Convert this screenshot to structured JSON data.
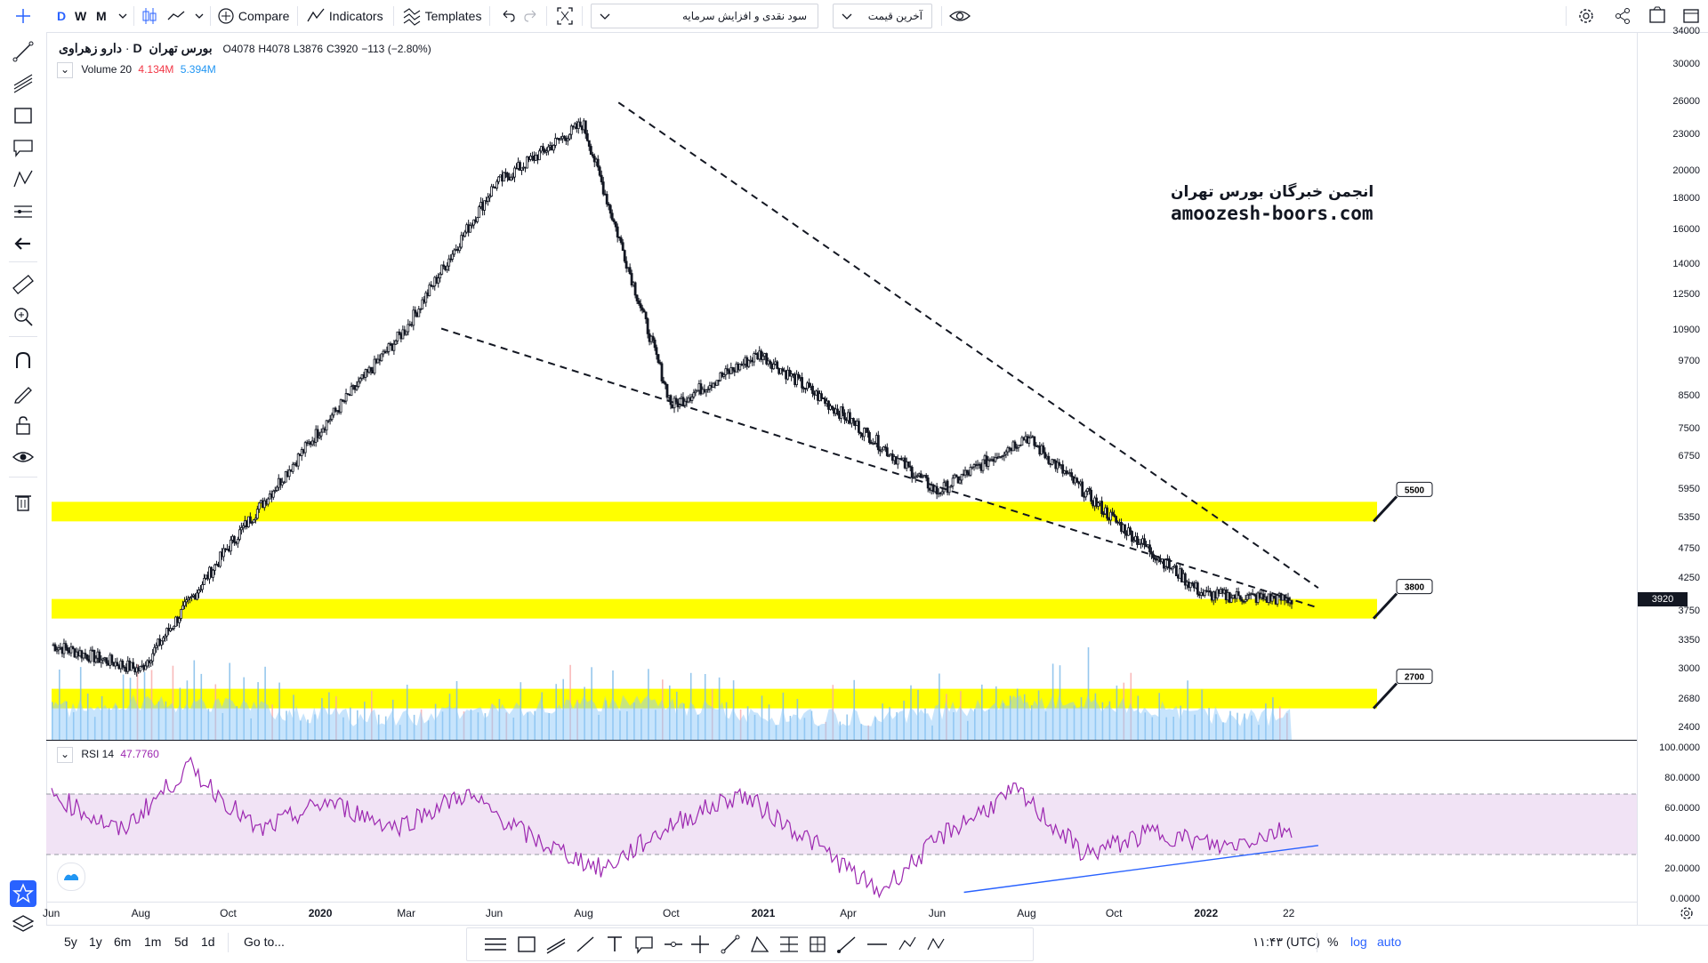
{
  "toolbar": {
    "intervals": [
      "D",
      "W",
      "M"
    ],
    "compare_label": "Compare",
    "indicators_label": "Indicators",
    "templates_label": "Templates",
    "dropdown1_value": "سود نقدی و افزایش سرمایه",
    "dropdown2_value": "آخرین قیمت"
  },
  "legend": {
    "symbol": "دارو زهراوی",
    "separator": "·",
    "interval": "D",
    "exchange": "بورس تهران",
    "ohlc": {
      "o": "O4078",
      "h": "H4078",
      "l": "L3876",
      "c": "C3920",
      "change": "−113 (−2.80%)"
    },
    "volume_label": "Volume 20",
    "volume_value1": "4.134M",
    "volume_value2": "5.394M",
    "rsi_label": "RSI 14",
    "rsi_value": "47.7760"
  },
  "watermark": {
    "line1": "انجمن خبرگان بورس تهران",
    "line2": "amoozesh-boors.com"
  },
  "annotations": [
    {
      "label": "5500",
      "price": 5500
    },
    {
      "label": "3800",
      "price": 3800
    },
    {
      "label": "2700",
      "price": 2700
    }
  ],
  "price_axis": {
    "ticks": [
      "34000",
      "30000",
      "26000",
      "23000",
      "20000",
      "18000",
      "16000",
      "14000",
      "12500",
      "10900",
      "9700",
      "8500",
      "7500",
      "6750",
      "5950",
      "5350",
      "4750",
      "4250",
      "3750",
      "3350",
      "3000",
      "2680",
      "2400"
    ],
    "current_price": "3920"
  },
  "rsi_axis": {
    "ticks": [
      "100.0000",
      "80.0000",
      "60.0000",
      "40.0000",
      "20.0000",
      "0.0000"
    ]
  },
  "time_axis": {
    "labels": [
      "Jun",
      "Aug",
      "Oct",
      "2020",
      "Mar",
      "Jun",
      "Aug",
      "Oct",
      "2021",
      "Apr",
      "Jun",
      "Aug",
      "Oct",
      "2022",
      "22"
    ]
  },
  "bottom_bar": {
    "ranges": [
      "5y",
      "1y",
      "6m",
      "1m",
      "5d",
      "1d"
    ],
    "goto_label": "Go to...",
    "time_label": "۱۱:۴۳ (UTC)",
    "percent_label": "%",
    "log_label": "log",
    "auto_label": "auto"
  },
  "colors": {
    "zone": "#ffff00",
    "up_candle": "#131722",
    "rsi_line": "#9c27b0",
    "rsi_band": "#f1e3f5",
    "volume_area": "#90caf9",
    "trend_line": "#2962ff",
    "price_label_bg": "#131722",
    "volume_value1": "#f23645",
    "volume_value2": "#2196f3"
  },
  "chart_data": {
    "type": "candlestick",
    "yscale": "log",
    "ylim": [
      2300,
      34000
    ],
    "x": [
      "2019-06",
      "2019-08",
      "2019-10",
      "2020-01",
      "2020-03",
      "2020-06",
      "2020-08",
      "2020-10",
      "2021-01",
      "2021-04",
      "2021-06",
      "2021-08",
      "2021-10",
      "2022-01",
      "2022-02"
    ],
    "close_approx": [
      3300,
      3000,
      4800,
      7400,
      11000,
      19000,
      24000,
      8200,
      10000,
      7800,
      5900,
      7300,
      5300,
      4000,
      3920
    ],
    "horizontal_zones": [
      5500,
      3800,
      2700
    ],
    "rsi": {
      "period": 14,
      "last": 47.776,
      "bands": [
        70,
        30
      ],
      "values_approx": [
        70,
        45,
        88,
        45,
        65,
        48,
        70,
        40,
        20,
        50,
        70,
        40,
        5,
        45,
        72,
        30,
        45,
        35,
        48
      ]
    }
  }
}
